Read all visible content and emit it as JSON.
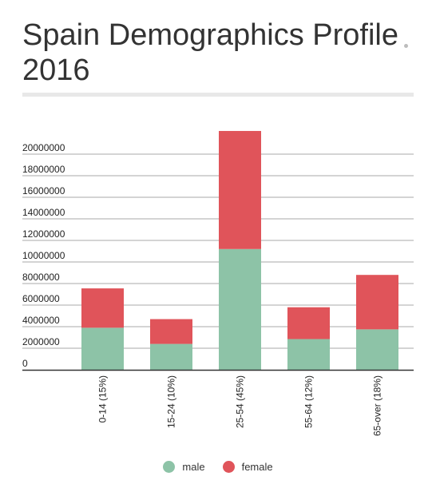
{
  "title_lines": [
    "Spain Demographics Profile",
    "2016"
  ],
  "colors": {
    "male": "#8dc3a7",
    "female": "#e0545a",
    "grid": "#aaaaaa"
  },
  "chart_data": {
    "type": "bar",
    "stacked": true,
    "title": "Spain Demographics Profile 2016",
    "categories": [
      "0-14 (15%)",
      "15-24 (10%)",
      "25-54 (45%)",
      "55-64 (12%)",
      "65-over (18%)"
    ],
    "series": [
      {
        "name": "male",
        "values": [
          3900000,
          2400000,
          11200000,
          2850000,
          3750000
        ]
      },
      {
        "name": "female",
        "values": [
          3650000,
          2300000,
          10950000,
          2950000,
          5050000
        ]
      }
    ],
    "y_ticks": [
      0,
      2000000,
      4000000,
      6000000,
      8000000,
      10000000,
      12000000,
      14000000,
      16000000,
      18000000,
      20000000
    ],
    "y_tick_labels": [
      "0",
      "2000000",
      "4000000",
      "6000000",
      "8000000",
      "10000000",
      "12000000",
      "14000000",
      "16000000",
      "18000000",
      "20000000"
    ],
    "ylim": [
      0,
      22000000
    ],
    "grid": true,
    "legend_position": "bottom"
  }
}
